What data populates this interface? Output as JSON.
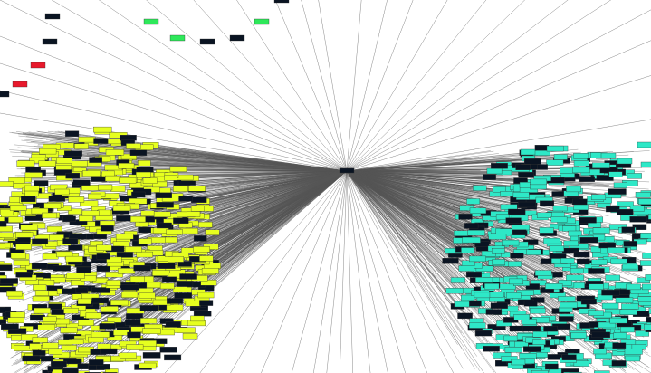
{
  "graph": {
    "hub_label": "",
    "edge_color": "#555555",
    "clusters": [
      {
        "name": "left-cluster",
        "fill": "#e6ff1f",
        "dark_fill": "#0a1422",
        "stroke": "#333333"
      },
      {
        "name": "right-cluster",
        "fill": "#2ee8c7",
        "dark_fill": "#0a1422",
        "stroke": "#333333"
      }
    ],
    "scattered_node_colors": {
      "green": "#2ee85a",
      "red": "#e8192c",
      "dark": "#0a1422"
    }
  }
}
